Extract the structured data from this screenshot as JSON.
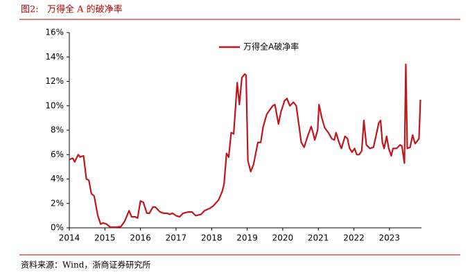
{
  "chart_data": {
    "type": "line",
    "figure_label": "图2:",
    "title": "万得全 A 的破净率",
    "source": "资料来源：Wind，浙商证券研究所",
    "x": [
      2014.0,
      2014.1,
      2014.15,
      2014.25,
      2014.3,
      2014.4,
      2014.48,
      2014.55,
      2014.62,
      2014.7,
      2014.8,
      2014.88,
      2014.95,
      2015.05,
      2015.15,
      2015.3,
      2015.45,
      2015.55,
      2015.68,
      2015.75,
      2015.85,
      2015.92,
      2016.0,
      2016.08,
      2016.18,
      2016.25,
      2016.35,
      2016.42,
      2016.55,
      2016.65,
      2016.75,
      2016.82,
      2016.9,
      2017.0,
      2017.1,
      2017.2,
      2017.35,
      2017.45,
      2017.55,
      2017.7,
      2017.8,
      2017.95,
      2018.05,
      2018.2,
      2018.3,
      2018.35,
      2018.42,
      2018.48,
      2018.55,
      2018.62,
      2018.72,
      2018.78,
      2018.85,
      2018.93,
      2018.97,
      2019.02,
      2019.1,
      2019.18,
      2019.3,
      2019.38,
      2019.45,
      2019.55,
      2019.62,
      2019.72,
      2019.78,
      2019.88,
      2019.95,
      2020.05,
      2020.12,
      2020.2,
      2020.3,
      2020.38,
      2020.45,
      2020.52,
      2020.6,
      2020.7,
      2020.8,
      2020.85,
      2020.9,
      2020.98,
      2021.02,
      2021.1,
      2021.18,
      2021.28,
      2021.38,
      2021.45,
      2021.5,
      2021.58,
      2021.65,
      2021.75,
      2021.82,
      2021.88,
      2021.95,
      2022.02,
      2022.08,
      2022.15,
      2022.22,
      2022.28,
      2022.35,
      2022.45,
      2022.55,
      2022.62,
      2022.7,
      2022.75,
      2022.8,
      2022.85,
      2022.92,
      2022.98,
      2023.05,
      2023.1,
      2023.2,
      2023.3,
      2023.35,
      2023.42,
      2023.46,
      2023.5,
      2023.58,
      2023.65,
      2023.72,
      2023.78,
      2023.83,
      2023.87
    ],
    "series": [
      {
        "name": "万得全A破净率",
        "color": "#c0161c",
        "values": [
          5.6,
          5.7,
          5.4,
          6.0,
          5.8,
          5.9,
          4.0,
          3.9,
          2.8,
          2.6,
          1.0,
          0.3,
          0.4,
          0.3,
          0.05,
          0.05,
          0.1,
          0.5,
          1.4,
          0.9,
          0.9,
          0.8,
          2.2,
          2.1,
          1.2,
          1.2,
          1.7,
          1.7,
          1.3,
          1.2,
          1.2,
          1.1,
          1.2,
          1.0,
          0.9,
          1.2,
          1.3,
          1.3,
          1.0,
          1.1,
          1.4,
          1.6,
          1.8,
          2.3,
          3.0,
          3.6,
          6.1,
          5.8,
          7.8,
          7.7,
          11.9,
          10.1,
          12.3,
          12.6,
          12.5,
          5.5,
          4.6,
          5.2,
          7.0,
          7.0,
          8.3,
          9.3,
          9.6,
          10.0,
          10.1,
          8.5,
          9.5,
          10.4,
          10.6,
          10.0,
          10.3,
          10.0,
          8.5,
          7.0,
          6.6,
          7.5,
          8.3,
          7.8,
          7.2,
          8.0,
          10.1,
          9.0,
          8.2,
          7.8,
          7.3,
          7.2,
          7.8,
          7.0,
          6.5,
          7.5,
          7.3,
          6.5,
          6.2,
          6.5,
          6.0,
          6.0,
          6.3,
          8.8,
          6.8,
          6.5,
          6.6,
          7.5,
          8.6,
          8.8,
          7.0,
          6.5,
          7.5,
          6.5,
          5.9,
          6.5,
          6.5,
          6.8,
          6.7,
          5.3,
          13.4,
          6.5,
          6.6,
          7.6,
          6.9,
          7.1,
          7.3,
          10.5
        ]
      }
    ],
    "xlim": [
      2014,
      2023.9
    ],
    "xticks": [
      2014,
      2015,
      2016,
      2017,
      2018,
      2019,
      2020,
      2021,
      2022,
      2023
    ],
    "ylim": [
      0,
      16
    ],
    "yticks": [
      {
        "value": 0,
        "label": "0%"
      },
      {
        "value": 2,
        "label": "2%"
      },
      {
        "value": 4,
        "label": "4%"
      },
      {
        "value": 6,
        "label": "6%"
      },
      {
        "value": 8,
        "label": "8%"
      },
      {
        "value": 10,
        "label": "10%"
      },
      {
        "value": 12,
        "label": "12%"
      },
      {
        "value": 14,
        "label": "14%"
      },
      {
        "value": 16,
        "label": "16%"
      }
    ],
    "legend": "top"
  }
}
